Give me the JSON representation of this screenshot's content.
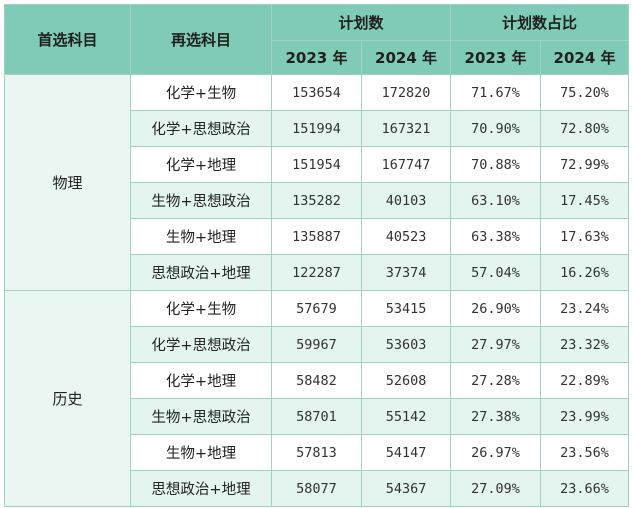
{
  "header": {
    "col1": "首选科目",
    "col2": "再选科目",
    "plan_count": "计划数",
    "plan_ratio": "计划数占比",
    "y2023": "2023 年",
    "y2024": "2024 年"
  },
  "groups": [
    {
      "name": "物理",
      "rows": [
        {
          "subject": "化学+生物",
          "c2023": "153654",
          "c2024": "172820",
          "r2023": "71.67%",
          "r2024": "75.20%"
        },
        {
          "subject": "化学+思想政治",
          "c2023": "151994",
          "c2024": "167321",
          "r2023": "70.90%",
          "r2024": "72.80%"
        },
        {
          "subject": "化学+地理",
          "c2023": "151954",
          "c2024": "167747",
          "r2023": "70.88%",
          "r2024": "72.99%"
        },
        {
          "subject": "生物+思想政治",
          "c2023": "135282",
          "c2024": "40103",
          "r2023": "63.10%",
          "r2024": "17.45%"
        },
        {
          "subject": "生物+地理",
          "c2023": "135887",
          "c2024": "40523",
          "r2023": "63.38%",
          "r2024": "17.63%"
        },
        {
          "subject": "思想政治+地理",
          "c2023": "122287",
          "c2024": "37374",
          "r2023": "57.04%",
          "r2024": "16.26%"
        }
      ]
    },
    {
      "name": "历史",
      "rows": [
        {
          "subject": "化学+生物",
          "c2023": "57679",
          "c2024": "53415",
          "r2023": "26.90%",
          "r2024": "23.24%"
        },
        {
          "subject": "化学+思想政治",
          "c2023": "59967",
          "c2024": "53603",
          "r2023": "27.97%",
          "r2024": "23.32%"
        },
        {
          "subject": "化学+地理",
          "c2023": "58482",
          "c2024": "52608",
          "r2023": "27.28%",
          "r2024": "22.89%"
        },
        {
          "subject": "生物+思想政治",
          "c2023": "58701",
          "c2024": "55142",
          "r2023": "27.38%",
          "r2024": "23.99%"
        },
        {
          "subject": "生物+地理",
          "c2023": "57813",
          "c2024": "54147",
          "r2023": "26.97%",
          "r2024": "23.56%"
        },
        {
          "subject": "思想政治+地理",
          "c2023": "58077",
          "c2024": "54367",
          "r2023": "27.09%",
          "r2024": "23.66%"
        }
      ]
    }
  ]
}
